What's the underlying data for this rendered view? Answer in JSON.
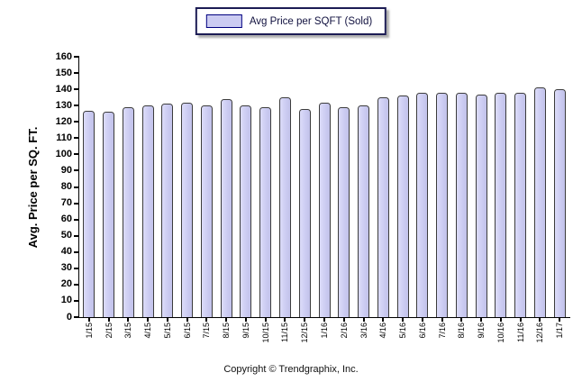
{
  "legend": {
    "label": "Avg Price per SQFT (Sold)",
    "swatch_fill": "#ccccf2",
    "swatch_border": "#00007f",
    "box_border": "#1c1c54"
  },
  "footer": {
    "copyright": "Copyright © Trendgraphix, Inc."
  },
  "chart_data": {
    "type": "bar",
    "title": "",
    "xlabel": "",
    "ylabel": "Avg. Price per SQ. FT.",
    "ylim": [
      0,
      160
    ],
    "ytick_step": 10,
    "yticks": [
      0,
      10,
      20,
      30,
      40,
      50,
      60,
      70,
      80,
      90,
      100,
      110,
      120,
      130,
      140,
      150,
      160
    ],
    "grid": false,
    "legend_position": "top-center",
    "categories": [
      "1/15",
      "2/15",
      "3/15",
      "4/15",
      "5/15",
      "6/15",
      "7/15",
      "8/15",
      "9/15",
      "10/15",
      "11/15",
      "12/15",
      "1/16",
      "2/16",
      "3/16",
      "4/16",
      "5/16",
      "6/16",
      "7/16",
      "8/16",
      "9/16",
      "10/16",
      "11/16",
      "12/16",
      "1/17"
    ],
    "series": [
      {
        "name": "Avg Price per SQFT (Sold)",
        "values": [
          127,
          126,
          129,
          130,
          131,
          132,
          130,
          134,
          130,
          129,
          135,
          128,
          132,
          129,
          130,
          135,
          136,
          138,
          138,
          138,
          137,
          138,
          138,
          141,
          140
        ]
      }
    ],
    "bar_fill": "#ccccf2",
    "bar_border": "#3c3c3c",
    "axis_color": "#000000"
  }
}
